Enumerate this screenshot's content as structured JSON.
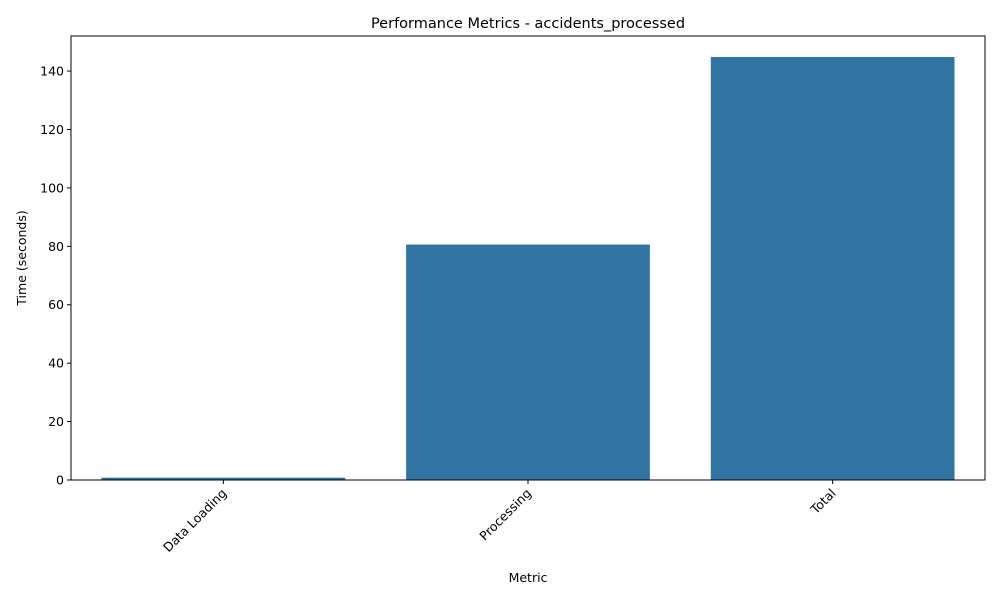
{
  "chart_data": {
    "type": "bar",
    "title": "Performance Metrics - accidents_processed",
    "xlabel": "Metric",
    "ylabel": "Time (seconds)",
    "categories": [
      "Data Loading",
      "Processing",
      "Total"
    ],
    "values": [
      0.8,
      80.6,
      144.8
    ],
    "ylim": [
      0,
      152
    ],
    "yticks": [
      0,
      20,
      40,
      60,
      80,
      100,
      120,
      140
    ],
    "xtick_rotation": 45,
    "bar_color": "#3274a1",
    "grid": false,
    "legend": false
  }
}
